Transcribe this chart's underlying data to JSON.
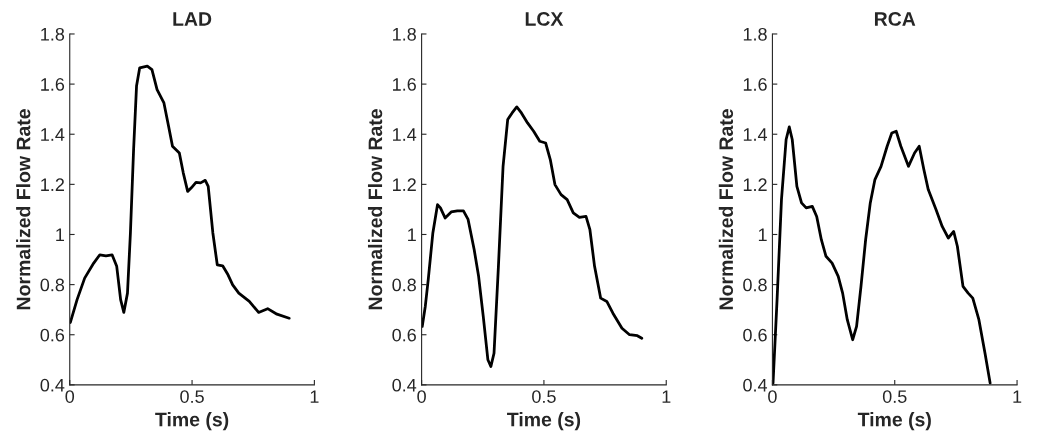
{
  "chart_data": [
    {
      "type": "line",
      "title": "LAD",
      "xlabel": "Time (s)",
      "ylabel": "Normalized Flow Rate",
      "xlim": [
        0,
        1
      ],
      "ylim": [
        0.4,
        1.8
      ],
      "xticks": [
        0,
        0.5,
        1
      ],
      "yticks": [
        0.4,
        0.6,
        0.8,
        1,
        1.2,
        1.4,
        1.6,
        1.8
      ],
      "x": [
        0.0025,
        0.03,
        0.061,
        0.098,
        0.123,
        0.148,
        0.173,
        0.192,
        0.208,
        0.221,
        0.236,
        0.248,
        0.261,
        0.273,
        0.286,
        0.317,
        0.336,
        0.357,
        0.385,
        0.404,
        0.42,
        0.448,
        0.464,
        0.482,
        0.497,
        0.516,
        0.535,
        0.554,
        0.566,
        0.585,
        0.603,
        0.625,
        0.647,
        0.666,
        0.691,
        0.734,
        0.772,
        0.809,
        0.847,
        0.897
      ],
      "series": [
        {
          "color": "#000000",
          "values": [
            0.649,
            0.74,
            0.826,
            0.886,
            0.919,
            0.915,
            0.919,
            0.873,
            0.74,
            0.689,
            0.766,
            1.006,
            1.339,
            1.592,
            1.665,
            1.672,
            1.658,
            1.578,
            1.525,
            1.432,
            1.352,
            1.325,
            1.246,
            1.172,
            1.186,
            1.208,
            1.206,
            1.216,
            1.192,
            1.006,
            0.879,
            0.875,
            0.839,
            0.799,
            0.766,
            0.733,
            0.689,
            0.704,
            0.682,
            0.666
          ]
        }
      ]
    },
    {
      "type": "line",
      "title": "LCX",
      "xlabel": "Time (s)",
      "ylabel": "Normalized Flow Rate",
      "xlim": [
        0,
        1
      ],
      "ylim": [
        0.4,
        1.8
      ],
      "xticks": [
        0,
        0.5,
        1
      ],
      "yticks": [
        0.4,
        0.6,
        0.8,
        1,
        1.2,
        1.4,
        1.6,
        1.8
      ],
      "x": [
        0.0025,
        0.015,
        0.027,
        0.046,
        0.065,
        0.077,
        0.096,
        0.121,
        0.146,
        0.171,
        0.19,
        0.215,
        0.233,
        0.252,
        0.271,
        0.283,
        0.296,
        0.314,
        0.333,
        0.352,
        0.37,
        0.389,
        0.408,
        0.433,
        0.458,
        0.483,
        0.507,
        0.526,
        0.545,
        0.57,
        0.595,
        0.62,
        0.645,
        0.672,
        0.688,
        0.707,
        0.732,
        0.757,
        0.782,
        0.819,
        0.85,
        0.882,
        0.9
      ],
      "series": [
        {
          "color": "#000000",
          "values": [
            0.633,
            0.713,
            0.819,
            1.006,
            1.119,
            1.106,
            1.066,
            1.09,
            1.094,
            1.094,
            1.06,
            0.939,
            0.833,
            0.673,
            0.5,
            0.473,
            0.526,
            0.873,
            1.272,
            1.459,
            1.485,
            1.509,
            1.485,
            1.445,
            1.412,
            1.372,
            1.365,
            1.299,
            1.199,
            1.159,
            1.139,
            1.086,
            1.068,
            1.072,
            1.019,
            0.873,
            0.746,
            0.733,
            0.686,
            0.626,
            0.6,
            0.596,
            0.586
          ]
        }
      ]
    },
    {
      "type": "line",
      "title": "RCA",
      "xlabel": "Time (s)",
      "ylabel": "Normalized Flow Rate",
      "xlim": [
        0,
        1
      ],
      "ylim": [
        0.4,
        1.8
      ],
      "xticks": [
        0,
        0.5,
        1
      ],
      "yticks": [
        0.4,
        0.6,
        0.8,
        1,
        1.2,
        1.4,
        1.6,
        1.8
      ],
      "x": [
        0.0025,
        0.019,
        0.037,
        0.056,
        0.069,
        0.081,
        0.1,
        0.119,
        0.138,
        0.163,
        0.181,
        0.2,
        0.219,
        0.244,
        0.269,
        0.287,
        0.306,
        0.328,
        0.344,
        0.362,
        0.381,
        0.4,
        0.419,
        0.444,
        0.469,
        0.488,
        0.506,
        0.525,
        0.556,
        0.581,
        0.6,
        0.619,
        0.637,
        0.669,
        0.694,
        0.719,
        0.741,
        0.756,
        0.779,
        0.8,
        0.819,
        0.844,
        0.869,
        0.89
      ],
      "series": [
        {
          "color": "#000000",
          "values": [
            0.407,
            0.74,
            1.139,
            1.379,
            1.429,
            1.379,
            1.192,
            1.126,
            1.106,
            1.112,
            1.072,
            0.979,
            0.913,
            0.886,
            0.833,
            0.766,
            0.66,
            0.58,
            0.633,
            0.793,
            0.979,
            1.126,
            1.219,
            1.272,
            1.352,
            1.405,
            1.412,
            1.352,
            1.272,
            1.325,
            1.352,
            1.259,
            1.179,
            1.099,
            1.032,
            0.986,
            1.012,
            0.953,
            0.793,
            0.766,
            0.746,
            0.66,
            0.526,
            0.407
          ]
        }
      ]
    }
  ]
}
